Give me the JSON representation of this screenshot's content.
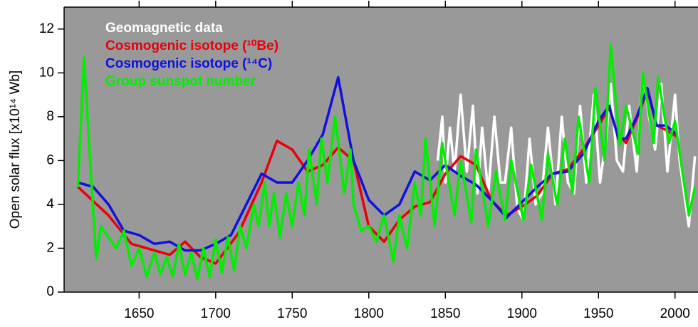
{
  "chart_data": {
    "type": "line",
    "y_label": "Open solar flux [x10¹⁴ Wb]",
    "xlim": [
      1601,
      2015
    ],
    "xticks": [
      1650,
      1700,
      1750,
      1800,
      1850,
      1900,
      1950,
      2000
    ],
    "ylim": [
      0,
      13
    ],
    "yticks": [
      0,
      2,
      4,
      6,
      8,
      10,
      12
    ],
    "background": "#999999",
    "legend_position": "upper left",
    "series": [
      {
        "name": "Geomagnetic data",
        "color": "#ffffff",
        "x": [
          1845,
          1848,
          1850,
          1853,
          1856,
          1860,
          1864,
          1868,
          1871,
          1874,
          1878,
          1882,
          1886,
          1889,
          1893,
          1897,
          1901,
          1905,
          1909,
          1913,
          1917,
          1922,
          1926,
          1930,
          1934,
          1938,
          1942,
          1947,
          1951,
          1955,
          1958,
          1962,
          1966,
          1970,
          1975,
          1979,
          1983,
          1987,
          1991,
          1995,
          2000,
          2003,
          2009,
          2013
        ],
        "values": [
          6,
          8,
          5,
          7.5,
          5.5,
          9,
          5.5,
          8.5,
          4.5,
          7.5,
          4.5,
          8,
          5,
          5,
          7.5,
          3.8,
          3.3,
          7,
          4,
          4.5,
          7.5,
          4,
          8,
          5,
          4.5,
          8.5,
          5,
          9,
          5,
          7,
          9.5,
          6,
          5.5,
          8.5,
          5.5,
          10,
          8,
          6.5,
          9.5,
          5.5,
          9,
          6,
          3,
          6.2
        ]
      },
      {
        "name": "Cosmogenic isotope (¹⁰Be)",
        "color": "#e8000b",
        "x": [
          1610,
          1630,
          1645,
          1660,
          1670,
          1680,
          1690,
          1700,
          1715,
          1730,
          1740,
          1750,
          1760,
          1770,
          1780,
          1790,
          1800,
          1810,
          1820,
          1830,
          1840,
          1850,
          1860,
          1870,
          1880,
          1890,
          1900,
          1910,
          1920,
          1930,
          1940,
          1950,
          1957,
          1962,
          1968,
          1975,
          1982,
          1988,
          1994,
          2001
        ],
        "values": [
          4.8,
          3.5,
          2.2,
          1.9,
          1.7,
          2.3,
          1.6,
          1.3,
          2.7,
          5,
          6.9,
          6.5,
          5.5,
          5.8,
          6.6,
          6,
          3,
          2.3,
          3.3,
          3.9,
          4.1,
          5.4,
          6.2,
          5.8,
          4.2,
          3.5,
          3.9,
          4.4,
          5.4,
          5.6,
          6.5,
          7.6,
          8.4,
          7.3,
          6.8,
          7.9,
          9.2,
          7.6,
          7.4,
          7.1
        ]
      },
      {
        "name": "Cosmogenic isotope (¹⁴C)",
        "color": "#1010e0",
        "x": [
          1610,
          1620,
          1630,
          1640,
          1650,
          1660,
          1670,
          1680,
          1690,
          1700,
          1710,
          1720,
          1730,
          1740,
          1750,
          1760,
          1770,
          1780,
          1790,
          1800,
          1810,
          1820,
          1830,
          1840,
          1850,
          1860,
          1870,
          1880,
          1890,
          1900,
          1910,
          1920,
          1930,
          1940,
          1950,
          1957,
          1963,
          1968,
          1975,
          1982,
          1988,
          1994,
          2001
        ],
        "values": [
          5,
          4.8,
          4,
          2.8,
          2.6,
          2.2,
          2.3,
          1.9,
          1.9,
          2.2,
          2.6,
          4,
          5.4,
          5,
          5,
          6,
          7.2,
          9.8,
          6,
          4.2,
          3.5,
          4,
          5.5,
          5.1,
          5.8,
          5.3,
          4.9,
          4.2,
          3.4,
          4.1,
          4.8,
          5.4,
          5.5,
          6.3,
          7.8,
          8.5,
          7,
          7,
          8,
          9.3,
          7.6,
          7.6,
          7.2
        ]
      },
      {
        "name": "Group sunspot number",
        "color": "#00ee00",
        "x": [
          1610,
          1614,
          1618,
          1622,
          1625,
          1630,
          1635,
          1640,
          1645,
          1650,
          1655,
          1660,
          1664,
          1668,
          1672,
          1676,
          1680,
          1684,
          1688,
          1692,
          1696,
          1700,
          1704,
          1708,
          1712,
          1716,
          1720,
          1725,
          1728,
          1732,
          1735,
          1738,
          1742,
          1746,
          1750,
          1754,
          1758,
          1761,
          1766,
          1769,
          1773,
          1778,
          1784,
          1788,
          1790,
          1795,
          1800,
          1805,
          1810,
          1816,
          1820,
          1825,
          1830,
          1834,
          1837,
          1843,
          1848,
          1856,
          1860,
          1867,
          1870,
          1878,
          1883,
          1889,
          1893,
          1901,
          1906,
          1913,
          1917,
          1923,
          1928,
          1933,
          1937,
          1944,
          1948,
          1954,
          1958,
          1964,
          1968,
          1976,
          1979,
          1986,
          1989,
          1996,
          2000,
          2009,
          2013
        ],
        "values": [
          4.8,
          10.7,
          6,
          1.5,
          3,
          2.5,
          2,
          2.8,
          1.2,
          2,
          0.7,
          1.8,
          0.8,
          1.6,
          0.7,
          2.2,
          0.8,
          1.8,
          0.6,
          2,
          0.7,
          2.4,
          0.9,
          2.5,
          1,
          3,
          2,
          4,
          3,
          5,
          3,
          4.5,
          2.5,
          4.5,
          3,
          5,
          3.5,
          6.5,
          4,
          7,
          5,
          8,
          4.5,
          6.5,
          4,
          2.8,
          3,
          2.3,
          3.5,
          1.4,
          3.5,
          2,
          5,
          3.5,
          7,
          3,
          6.8,
          3.5,
          6,
          3.2,
          6.5,
          3,
          5.5,
          3.3,
          6,
          3.3,
          5.8,
          3.3,
          6.3,
          4,
          7,
          4.5,
          8,
          5,
          9.3,
          6,
          11.3,
          6.7,
          8.5,
          6.3,
          10,
          6.8,
          9.8,
          6.8,
          7.8,
          3.5,
          4.8
        ]
      }
    ]
  }
}
